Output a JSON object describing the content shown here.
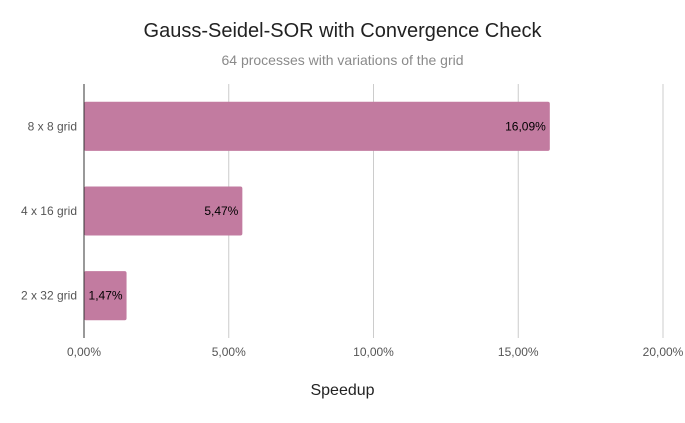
{
  "chart_data": {
    "type": "bar",
    "orientation": "horizontal",
    "title": "Gauss-Seidel-SOR with Convergence Check",
    "subtitle": "64 processes with variations of the grid",
    "xlabel": "Speedup",
    "ylabel": "",
    "categories": [
      "8 x 8 grid",
      "4 x 16 grid",
      "2 x 32 grid"
    ],
    "values": [
      16.09,
      5.47,
      1.47
    ],
    "data_labels": [
      "16,09%",
      "5,47%",
      "1,47%"
    ],
    "xlim": [
      0,
      20
    ],
    "x_ticks": [
      0,
      5,
      10,
      15,
      20
    ],
    "x_tick_labels": [
      "0,00%",
      "5,00%",
      "10,00%",
      "15,00%",
      "20,00%"
    ],
    "grid": true,
    "legend": "none",
    "bar_color": "#c27ba0",
    "gridline_color": "#cccccc",
    "axis_color": "#333333"
  }
}
